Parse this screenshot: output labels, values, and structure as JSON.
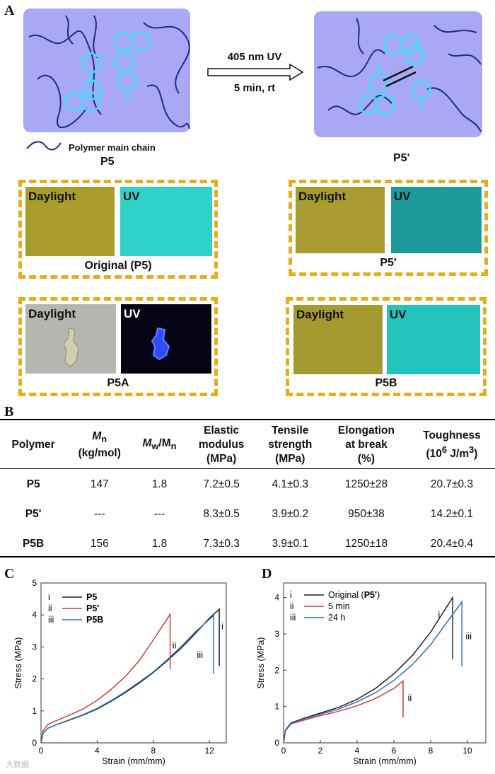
{
  "panel_a": {
    "letter": "A",
    "arrow_top": "405 nm UV",
    "arrow_bottom": "5 min, rt",
    "legend": "Polymer main chain",
    "left_name": "P5",
    "right_name": "P5'",
    "photos": [
      {
        "name": "Original (P5)",
        "left_label": "Daylight",
        "right_label": "UV",
        "left_color": "#a89d2c",
        "right_color": "#2fd2c9"
      },
      {
        "name": "P5'",
        "left_label": "Daylight",
        "right_label": "UV",
        "left_color": "#a89c30",
        "right_color": "#1e9a98"
      },
      {
        "name": "P5A",
        "left_label": "Daylight",
        "right_label": "UV",
        "left_color": "#b6b6b0",
        "right_color": "#040414"
      },
      {
        "name": "P5B",
        "left_label": "Daylight",
        "right_label": "UV",
        "left_color": "#a59a2f",
        "right_color": "#22c4bb"
      }
    ]
  },
  "panel_b": {
    "letter": "B",
    "headers": {
      "polymer": "Polymer",
      "mn": "M",
      "mn_sub": "n",
      "mn_unit": "(kg/mol)",
      "mw": "M",
      "mw_sub": "w",
      "mw_slash": "/M",
      "mw_sub2": "n",
      "modulus_1": "Elastic",
      "modulus_2": "modulus",
      "modulus_3": "(MPa)",
      "tensile_1": "Tensile",
      "tensile_2": "strength",
      "tensile_3": "(MPa)",
      "elong_1": "Elongation",
      "elong_2": "at break",
      "elong_3": "(%)",
      "tough_1": "Toughness",
      "tough_2": "(10",
      "tough_sup": "6",
      "tough_3": " J/m",
      "tough_sup2": "3",
      "tough_4": ")"
    },
    "rows": [
      {
        "polymer": "P5",
        "mn": "147",
        "pdi": "1.8",
        "modulus": "7.2±0.5",
        "tensile": "4.1±0.3",
        "elongation": "1250±28",
        "toughness": "20.7±0.3"
      },
      {
        "polymer": "P5'",
        "mn": "---",
        "pdi": "---",
        "modulus": "8.3±0.5",
        "tensile": "3.9±0.2",
        "elongation": "950±38",
        "toughness": "14.2±0.1"
      },
      {
        "polymer": "P5B",
        "mn": "156",
        "pdi": "1.8",
        "modulus": "7.3±0.3",
        "tensile": "3.9±0.1",
        "elongation": "1250±18",
        "toughness": "20.4±0.4"
      }
    ]
  },
  "chart_data": [
    {
      "panel": "C",
      "type": "line",
      "xlabel": "Strain (mm/mm)",
      "ylabel": "Stress (MPa)",
      "xlim": [
        0,
        13.2
      ],
      "ylim": [
        0,
        5
      ],
      "xticks": [
        0,
        4,
        8,
        12
      ],
      "yticks": [
        0,
        1,
        2,
        3,
        4,
        5
      ],
      "legend_position": "top-left",
      "series": [
        {
          "label": "i",
          "name": "P5",
          "color": "#222222",
          "x": [
            0,
            0.15,
            0.5,
            1,
            2,
            3,
            4,
            5,
            6,
            7,
            8,
            9,
            10,
            11,
            12,
            12.7
          ],
          "y": [
            0,
            0.3,
            0.46,
            0.55,
            0.71,
            0.87,
            1.06,
            1.3,
            1.57,
            1.87,
            2.2,
            2.57,
            2.97,
            3.42,
            3.9,
            4.18
          ],
          "break_to": 2.4
        },
        {
          "label": "ii",
          "name": "P5'",
          "color": "#d23a3a",
          "x": [
            0,
            0.15,
            0.5,
            1,
            2,
            3,
            4,
            5,
            6,
            7,
            8,
            9.2
          ],
          "y": [
            0,
            0.38,
            0.58,
            0.68,
            0.86,
            1.06,
            1.33,
            1.67,
            2.07,
            2.57,
            3.22,
            4.02
          ],
          "break_to": 2.3
        },
        {
          "label": "iii",
          "name": "P5B",
          "color": "#2a6fb8",
          "x": [
            0,
            0.15,
            0.5,
            1,
            2,
            3,
            4,
            5,
            6,
            7,
            8,
            9,
            10,
            11,
            12.3
          ],
          "y": [
            0,
            0.3,
            0.46,
            0.55,
            0.72,
            0.88,
            1.08,
            1.32,
            1.6,
            1.9,
            2.22,
            2.6,
            3.02,
            3.47,
            3.98
          ],
          "break_to": 2.15
        }
      ]
    },
    {
      "panel": "D",
      "type": "line",
      "xlabel": "Strain (mm/mm)",
      "ylabel": "Stress (MPa)",
      "xlim": [
        0,
        11
      ],
      "ylim": [
        0,
        4.4
      ],
      "xticks": [
        0,
        2,
        4,
        6,
        8,
        10
      ],
      "yticks": [
        0,
        1,
        2,
        3,
        4
      ],
      "legend_position": "top-left",
      "series": [
        {
          "label": "i",
          "name": "Original (",
          "name_bold": "P5'",
          "name_end": ")",
          "color": "#222222",
          "x": [
            0,
            0.1,
            0.4,
            1,
            2,
            3,
            4,
            5,
            6,
            7,
            8,
            9.2
          ],
          "y": [
            0,
            0.35,
            0.55,
            0.66,
            0.82,
            0.98,
            1.2,
            1.5,
            1.9,
            2.4,
            3.05,
            4.0
          ],
          "break_to": 2.3
        },
        {
          "label": "ii",
          "name": "5 min",
          "color": "#d23a3a",
          "x": [
            0,
            0.1,
            0.4,
            1,
            2,
            3,
            4,
            5,
            6,
            6.5
          ],
          "y": [
            0,
            0.33,
            0.52,
            0.61,
            0.75,
            0.87,
            1.02,
            1.22,
            1.5,
            1.7
          ],
          "break_to": 0.7
        },
        {
          "label": "iii",
          "name": "24 h",
          "color": "#2a6fb8",
          "x": [
            0,
            0.1,
            0.4,
            1,
            2,
            3,
            4,
            5,
            6,
            7,
            8,
            9,
            9.7
          ],
          "y": [
            0,
            0.34,
            0.54,
            0.64,
            0.79,
            0.93,
            1.13,
            1.38,
            1.72,
            2.15,
            2.7,
            3.4,
            3.88
          ],
          "break_to": 2.1
        }
      ]
    }
  ],
  "watermark": "大数据"
}
